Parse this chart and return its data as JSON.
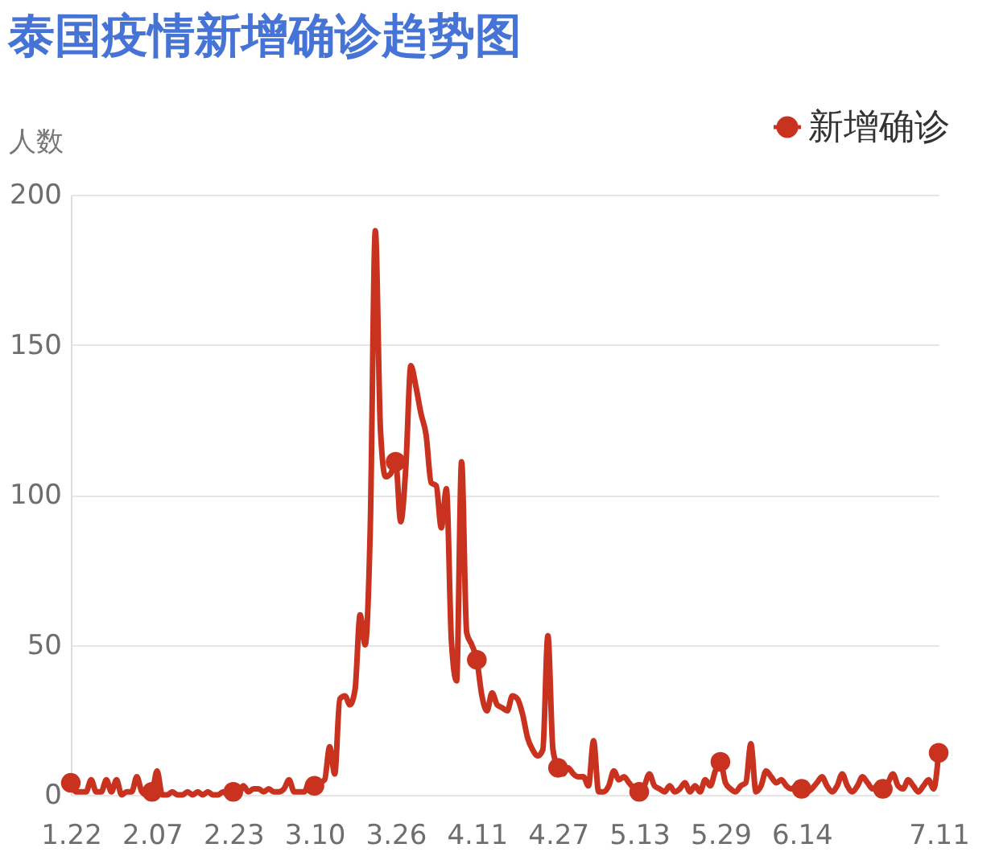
{
  "chart_data": {
    "type": "line",
    "title": "泰国疫情新增确诊趋势图",
    "ylabel": "人数",
    "categories": [
      "1.22",
      null,
      null,
      null,
      null,
      null,
      null,
      null,
      null,
      null,
      null,
      null,
      null,
      null,
      null,
      null,
      "2.07",
      null,
      null,
      null,
      null,
      null,
      null,
      null,
      null,
      null,
      null,
      null,
      null,
      null,
      null,
      null,
      "2.23",
      null,
      null,
      null,
      null,
      null,
      null,
      null,
      null,
      null,
      null,
      null,
      null,
      null,
      null,
      null,
      "3.10",
      null,
      null,
      null,
      null,
      null,
      null,
      null,
      null,
      null,
      null,
      null,
      null,
      null,
      null,
      null,
      "3.26",
      null,
      null,
      null,
      null,
      null,
      null,
      null,
      null,
      null,
      null,
      null,
      null,
      null,
      null,
      null,
      "4.11",
      null,
      null,
      null,
      null,
      null,
      null,
      null,
      null,
      null,
      null,
      null,
      null,
      null,
      null,
      null,
      "4.27",
      null,
      null,
      null,
      null,
      null,
      null,
      null,
      null,
      null,
      null,
      null,
      null,
      null,
      null,
      null,
      "5.13",
      null,
      null,
      null,
      null,
      null,
      null,
      null,
      null,
      null,
      null,
      null,
      null,
      null,
      null,
      null,
      "5.29",
      null,
      null,
      null,
      null,
      null,
      null,
      null,
      null,
      null,
      null,
      null,
      null,
      null,
      null,
      null,
      "6.14",
      null,
      null,
      null,
      null,
      null,
      null,
      null,
      null,
      null,
      null,
      null,
      null,
      null,
      null,
      null,
      null,
      null,
      null,
      null,
      null,
      null,
      null,
      null,
      null,
      null,
      null,
      "7.11"
    ],
    "series": [
      {
        "name": "新增确诊",
        "color": "#c8321e",
        "values": [
          4,
          1,
          1,
          1,
          5,
          1,
          1,
          5,
          1,
          5,
          0,
          1,
          1,
          6,
          1,
          0,
          1,
          8,
          0,
          0,
          1,
          0,
          0,
          1,
          0,
          1,
          0,
          1,
          0,
          0,
          1,
          0,
          1,
          0,
          3,
          1,
          2,
          2,
          1,
          2,
          1,
          1,
          2,
          5,
          1,
          1,
          1,
          4,
          3,
          4,
          5,
          16,
          7,
          32,
          33,
          30,
          35,
          60,
          50,
          89,
          188,
          122,
          106,
          107,
          111,
          91,
          109,
          143,
          136,
          127,
          120,
          104,
          103,
          89,
          102,
          51,
          38,
          111,
          54,
          50,
          45,
          33,
          28,
          34,
          30,
          29,
          28,
          33,
          32,
          27,
          19,
          15,
          13,
          15,
          53,
          15,
          9,
          7,
          9,
          7,
          6,
          6,
          3,
          18,
          1,
          1,
          3,
          8,
          5,
          6,
          4,
          2,
          1,
          3,
          7,
          3,
          2,
          1,
          3,
          1,
          2,
          4,
          1,
          3,
          1,
          5,
          3,
          8,
          11,
          4,
          2,
          1,
          3,
          4,
          17,
          1,
          3,
          8,
          6,
          4,
          5,
          3,
          2,
          3,
          2,
          1,
          2,
          4,
          6,
          3,
          1,
          3,
          7,
          3,
          1,
          3,
          6,
          4,
          2,
          3,
          2,
          4,
          7,
          3,
          2,
          5,
          3,
          1,
          3,
          5,
          2,
          14
        ]
      }
    ],
    "ylim": [
      0,
      200
    ],
    "yticks": [
      0,
      50,
      100,
      150,
      200
    ],
    "grid": "y",
    "legend": "top right",
    "line_style": "solid"
  }
}
